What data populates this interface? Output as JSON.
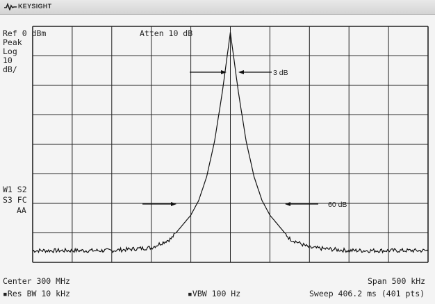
{
  "brand": {
    "name": "KEYSIGHT",
    "logo_icon": "keysight-wave-logo-icon"
  },
  "status": {
    "ref": "Ref 0 dBm",
    "atten": "Atten 10 dB",
    "detector": "Peak",
    "scale_type": "Log",
    "scale_value": "10",
    "scale_unit": "dB/",
    "w1s2": "W1  S2",
    "s3fc": "S3  FC",
    "aa": "AA"
  },
  "footer": {
    "center": "Center 300 MHz",
    "span": "Span 500 kHz",
    "rbw": "▪Res BW 10 kHz",
    "vbw": "▪VBW 100 Hz",
    "sweep": "Sweep 406.2 ms (401 pts)"
  },
  "annotations": {
    "label_3db": "3 dB",
    "label_60db": "60 dB"
  },
  "colors": {
    "trace": "#111111",
    "grid": "#222222",
    "background": "#f4f4f4"
  },
  "chart_data": {
    "type": "line",
    "x_center_mhz": 300,
    "x_span_khz": 500,
    "x_divisions": 10,
    "y_ref_dbm": 0,
    "y_scale_db_per_div": 10,
    "y_divisions": 8,
    "grid": true,
    "series": [
      {
        "x_offset_khz": [
          -250,
          -200,
          -150,
          -100,
          -75,
          -50,
          -40,
          -30,
          -20,
          -10,
          0,
          10,
          20,
          30,
          40,
          50,
          75,
          100,
          150,
          200,
          250
        ],
        "values_dbm": [
          -76,
          -76,
          -76,
          -75,
          -72,
          -64,
          -59,
          -51,
          -39,
          -22,
          -2,
          -22,
          -39,
          -51,
          -59,
          -64,
          -72,
          -75,
          -76,
          -76,
          -76
        ]
      }
    ]
  }
}
